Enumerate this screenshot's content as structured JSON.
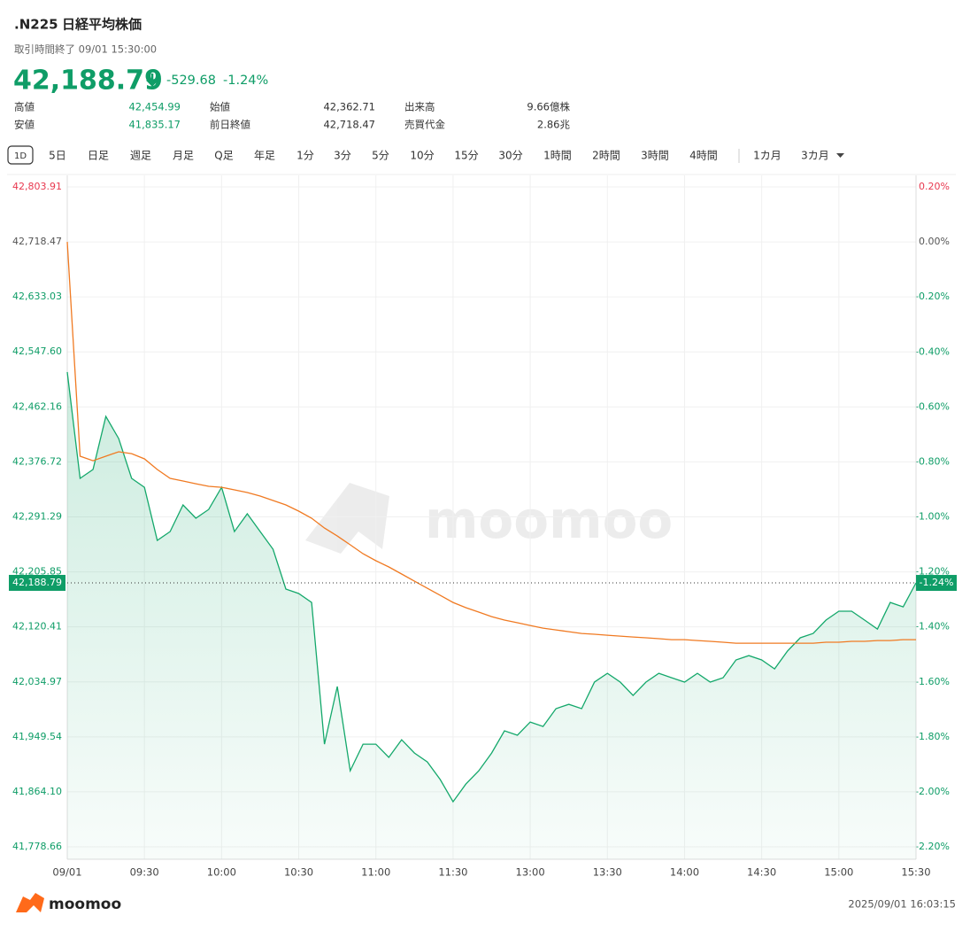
{
  "header": {
    "symbol": ".N225",
    "name": "日経平均株価",
    "status": "取引時間終了 09/01 15:30:00",
    "change": "-529.68"
  },
  "stats": [
    [
      {
        "label": "高値",
        "value": "42,454.99"
      },
      {
        "label": "始値",
        "value": "42,362.71"
      },
      {
        "label": "出来高",
        "value": "9.66億株"
      }
    ],
    [
      {
        "label": "安値",
        "value": "41,835.17"
      },
      {
        "label": "前日終値",
        "value": "42,718.47"
      },
      {
        "label": "売買代金",
        "value": "2.86兆"
      }
    ]
  ],
  "tabs": [
    "1D",
    "5日",
    "日足",
    "週足",
    "月足",
    "Q足",
    "年足",
    "1分",
    "3分",
    "5分",
    "10分",
    "15分",
    "30分",
    "1時間",
    "2時間",
    "3時間",
    "4時間",
    "1カ月",
    "3カ月"
  ],
  "watermark": "moomoo",
  "footer": {
    "brand": "moomoo",
    "timestamp": "2025/09/01 16:03:15"
  },
  "chart_data": {
    "type": "line",
    "categories": [
      "09/01",
      null,
      null,
      null,
      null,
      null,
      "09:30",
      null,
      null,
      null,
      null,
      null,
      "10:00",
      null,
      null,
      null,
      null,
      null,
      "10:30",
      null,
      null,
      null,
      null,
      null,
      "11:00",
      null,
      null,
      null,
      null,
      null,
      "11:30",
      null,
      null,
      null,
      null,
      null,
      "13:00",
      null,
      null,
      null,
      null,
      null,
      "13:30",
      null,
      null,
      null,
      null,
      null,
      "14:00",
      null,
      null,
      null,
      null,
      null,
      "14:30",
      null,
      null,
      null,
      null,
      null,
      "15:00",
      null,
      null,
      null,
      null,
      null,
      "15:30"
    ],
    "series": [
      {
        "color": "#14a86b",
        "values": [
          42516.3,
          42351.1,
          42364.9,
          42447.4,
          42413.0,
          42351.1,
          42337.3,
          42254.8,
          42268.5,
          42309.8,
          42289.2,
          42302.9,
          42337.3,
          42268.5,
          42296.1,
          42268.5,
          42241.0,
          42179.1,
          42172.2,
          42158.4,
          41938.2,
          42027.7,
          41896.9,
          41938.2,
          41938.2,
          41917.6,
          41945.1,
          41924.4,
          41910.7,
          41883.2,
          41848.7,
          41876.3,
          41896.9,
          41924.4,
          41958.9,
          41952.0,
          41972.6,
          41965.7,
          41993.3,
          42000.1,
          41993.3,
          42034.6,
          42048.3,
          42034.6,
          42013.9,
          42034.6,
          42048.3,
          42041.4,
          42034.6,
          42048.3,
          42034.6,
          42041.4,
          42069.0,
          42075.8,
          42069.0,
          42055.2,
          42082.7,
          42103.4,
          42110.2,
          42130.9,
          42144.7,
          42144.7,
          42130.9,
          42117.1,
          42158.4,
          42151.5,
          42188.79
        ]
      },
      {
        "color": "#f07a22",
        "values": [
          42718.5,
          42385.5,
          42378.6,
          42385.5,
          42392.4,
          42389.6,
          42381.4,
          42364.9,
          42351.1,
          42347.0,
          42342.8,
          42338.7,
          42337.3,
          42333.2,
          42329.1,
          42323.6,
          42316.7,
          42309.8,
          42300.2,
          42289.2,
          42274.0,
          42261.6,
          42247.9,
          42234.1,
          42223.1,
          42213.5,
          42202.5,
          42191.4,
          42180.4,
          42169.4,
          42158.4,
          42150.2,
          42143.3,
          42136.4,
          42130.9,
          42126.8,
          42122.6,
          42118.5,
          42115.7,
          42113.0,
          42110.2,
          42108.9,
          42107.5,
          42106.1,
          42104.7,
          42103.4,
          42102.0,
          42100.6,
          42100.6,
          42099.2,
          42097.9,
          42096.5,
          42095.1,
          42095.1,
          42095.1,
          42095.1,
          42095.1,
          42095.1,
          42095.1,
          42096.5,
          42096.5,
          42097.9,
          42097.9,
          42099.2,
          42099.2,
          42100.6,
          42100.6
        ]
      }
    ],
    "last": {
      "value": 42188.79,
      "label": "42,188.79"
    },
    "last_pct": {
      "value": -1.24,
      "label": "-1.24%"
    },
    "ylim": [
      41759.4,
      42821.8
    ],
    "yticks": [
      {
        "value": 41778.66,
        "label": "41,778.66"
      },
      {
        "value": 41864.1,
        "label": "41,864.10"
      },
      {
        "value": 41949.54,
        "label": "41,949.54"
      },
      {
        "value": 42034.97,
        "label": "42,034.97"
      },
      {
        "value": 42120.41,
        "label": "42,120.41"
      },
      {
        "value": 42205.85,
        "label": "42,205.85"
      },
      {
        "value": 42291.29,
        "label": "42,291.29"
      },
      {
        "value": 42376.72,
        "label": "42,376.72"
      },
      {
        "value": 42462.16,
        "label": "42,462.16"
      },
      {
        "value": 42547.6,
        "label": "42,547.60"
      },
      {
        "value": 42633.03,
        "label": "42,633.03"
      },
      {
        "value": 42718.47,
        "label": "42,718.47"
      },
      {
        "value": 42803.91,
        "label": "42,803.91"
      }
    ],
    "y2lim": [
      -2.245,
      0.242
    ],
    "y2ticks": [
      {
        "value": -2.2,
        "label": "-2.20%"
      },
      {
        "value": -2.0,
        "label": "-2.00%"
      },
      {
        "value": -1.8,
        "label": "-1.80%"
      },
      {
        "value": -1.6,
        "label": "-1.60%"
      },
      {
        "value": -1.4,
        "label": "-1.40%"
      },
      {
        "value": -1.2,
        "label": "-1.20%"
      },
      {
        "value": -1.0,
        "label": "-1.00%"
      },
      {
        "value": -0.8,
        "label": "-0.80%"
      },
      {
        "value": -0.6,
        "label": "-0.60%"
      },
      {
        "value": -0.4,
        "label": "-0.40%"
      },
      {
        "value": -0.2,
        "label": "-0.20%"
      },
      {
        "value": 0,
        "label": "0.00%"
      },
      {
        "value": 0.2,
        "label": "0.20%"
      }
    ],
    "grid": true
  }
}
